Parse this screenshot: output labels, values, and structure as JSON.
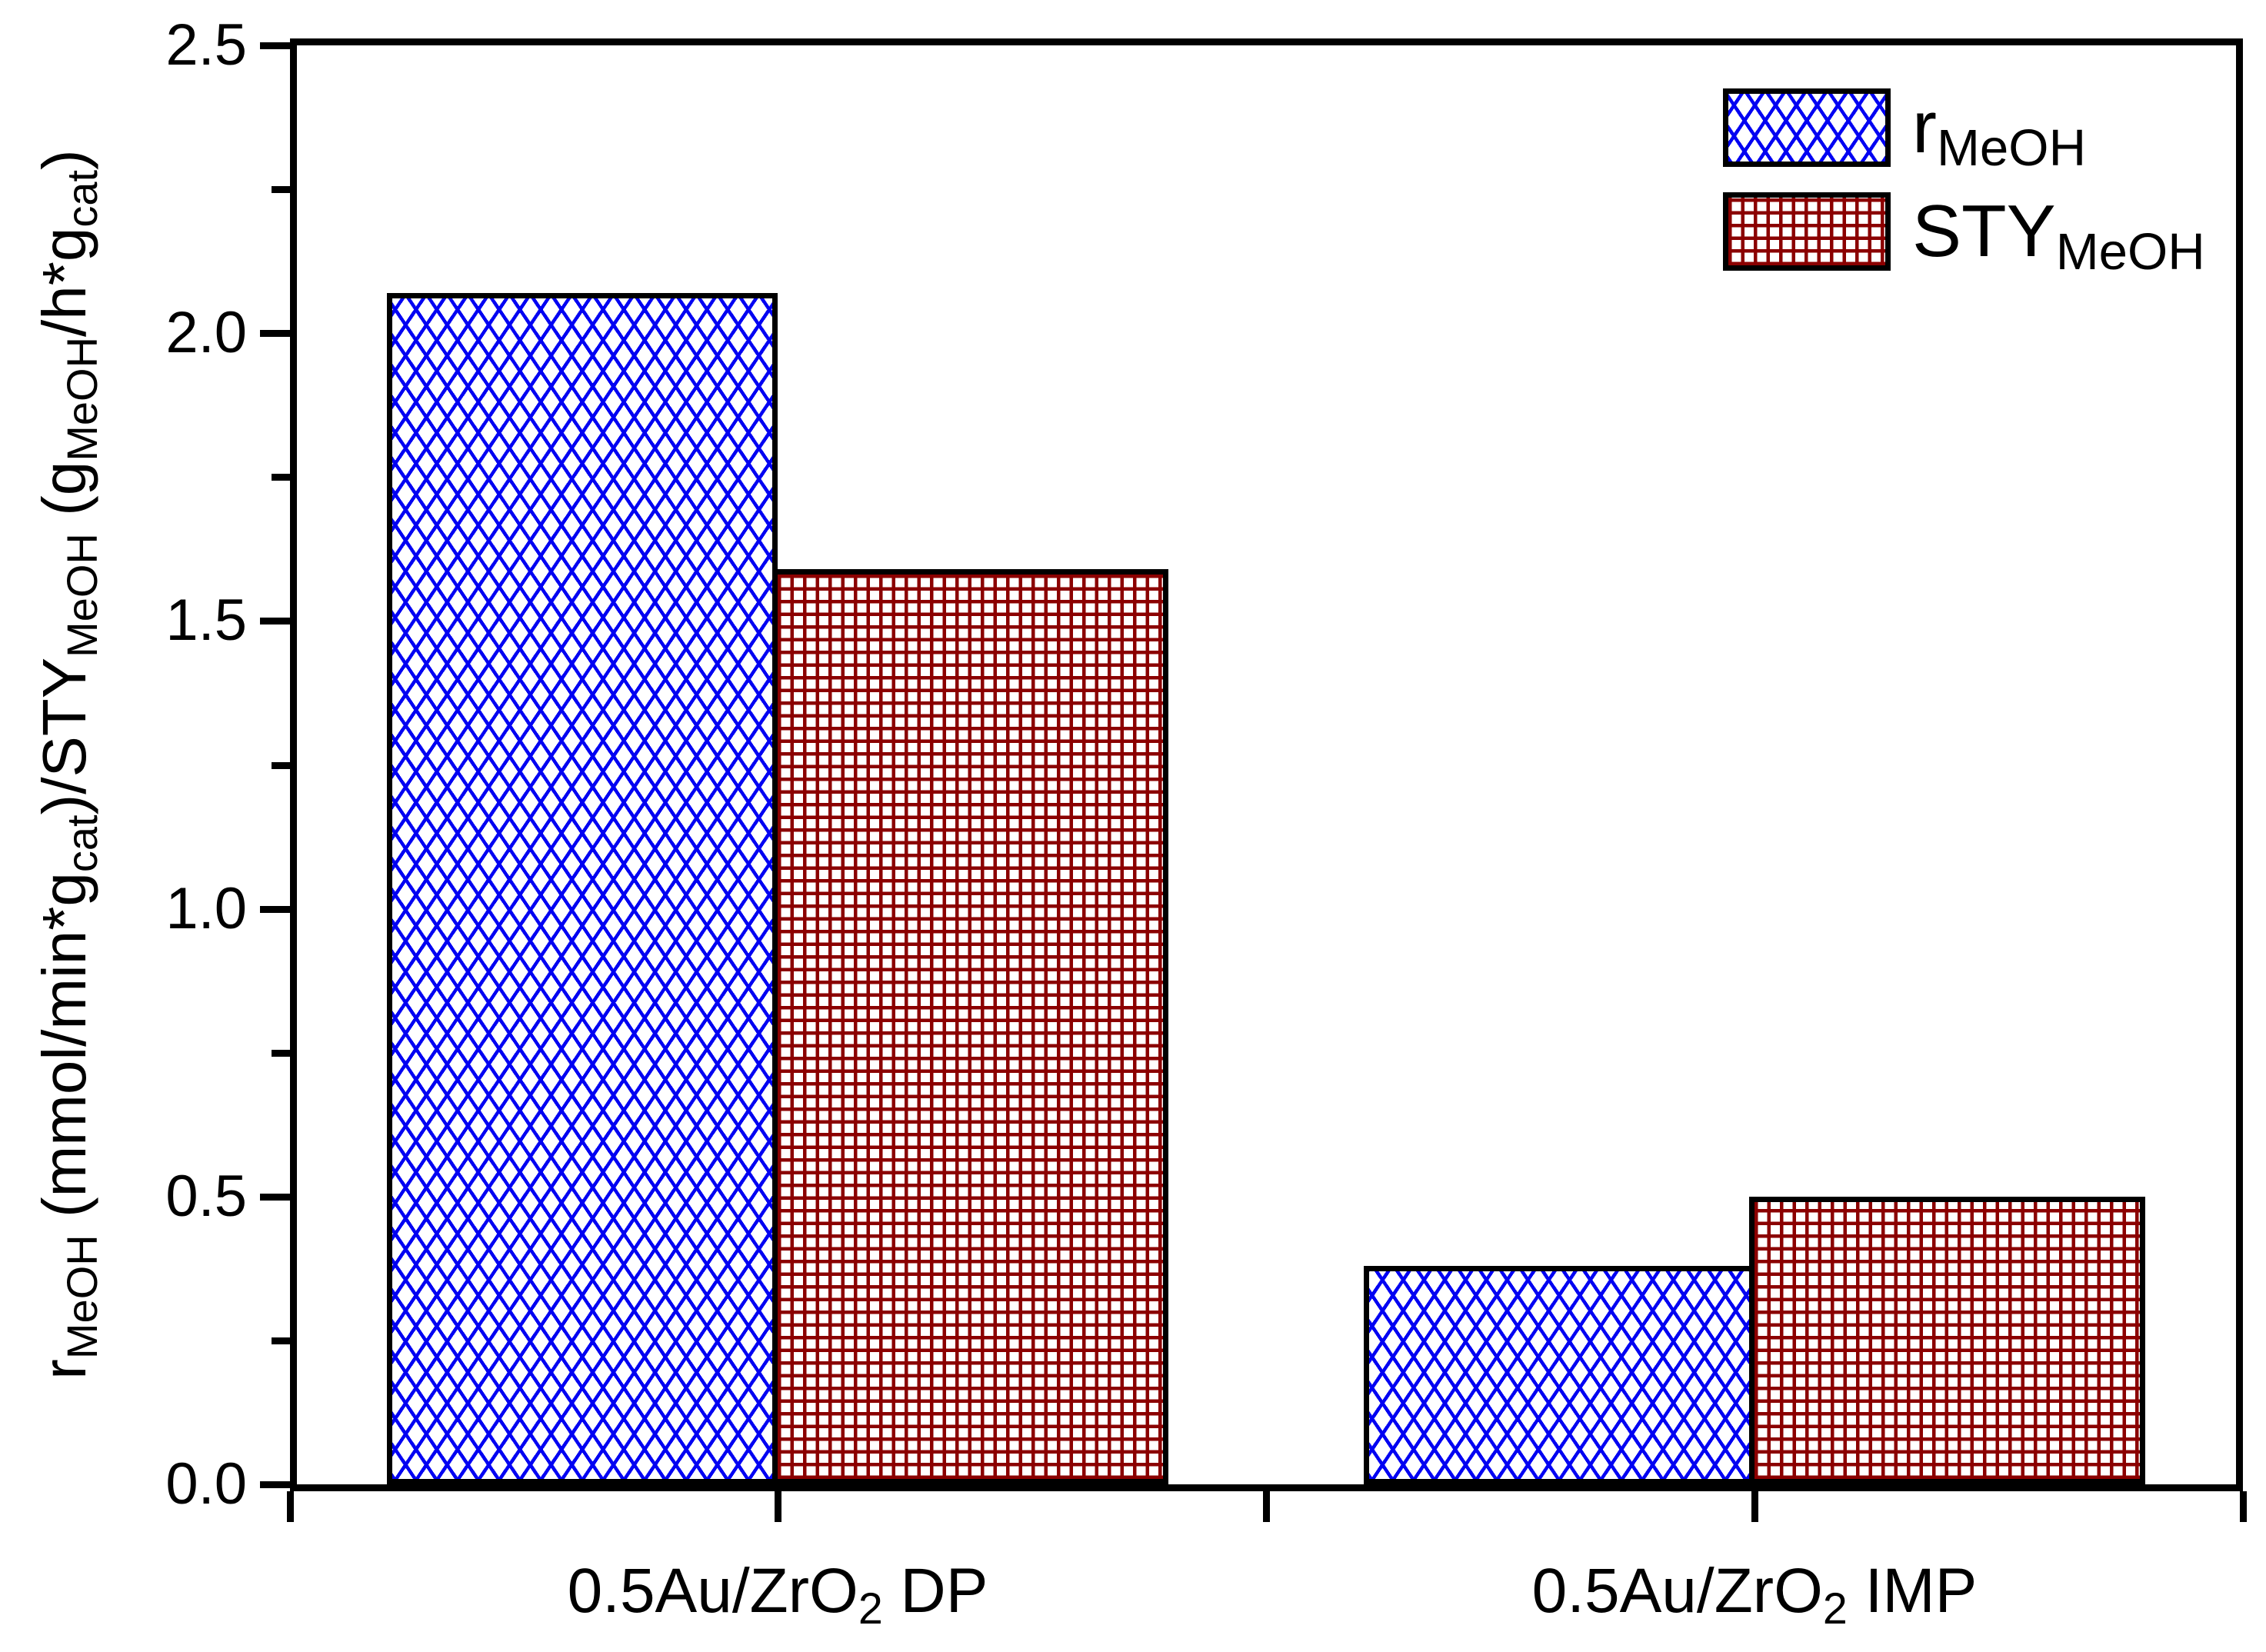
{
  "figure": {
    "colors": {
      "r_meoh_pattern": "#0202f2",
      "sty_meoh_pattern": "#8b0000",
      "axis": "#000000",
      "background": "#ffffff"
    },
    "y_axis": {
      "label_text": "r_MeOH (mmol/min*g_cat)/STY_MeOH (g_MeOH/h*g_cat)",
      "label_parts": [
        {
          "t": "r"
        },
        {
          "s": "MeOH"
        },
        {
          "t": " (mmol/min*g"
        },
        {
          "s": "cat"
        },
        {
          "t": ")/STY"
        },
        {
          "s": "MeOH"
        },
        {
          "t": " (g"
        },
        {
          "s": "MeOH"
        },
        {
          "t": "/h*g"
        },
        {
          "s": "cat"
        },
        {
          "t": ")"
        }
      ],
      "tick_labels": [
        "2.5",
        "2.0",
        "1.5",
        "1.0",
        "0.5",
        "0.0"
      ],
      "minor_tick_values": [
        2.25,
        1.75,
        1.25,
        0.75,
        0.25
      ]
    },
    "x_axis": {
      "categories": [
        {
          "label_text": "0.5Au/ZrO2 DP",
          "label_parts": [
            {
              "t": "0.5Au/ZrO"
            },
            {
              "s": "2"
            },
            {
              "t": " DP"
            }
          ]
        },
        {
          "label_text": "0.5Au/ZrO2 IMP",
          "label_parts": [
            {
              "t": "0.5Au/ZrO"
            },
            {
              "s": "2"
            },
            {
              "t": " IMP"
            }
          ]
        }
      ]
    },
    "legend": [
      {
        "label_text": "r_MeOH",
        "label_parts": [
          {
            "t": "r"
          },
          {
            "s": "MeOH"
          }
        ],
        "pattern": "blue-diagonal-crosshatch"
      },
      {
        "label_text": "STY_MeOH",
        "label_parts": [
          {
            "t": "STY"
          },
          {
            "s": "MeOH"
          }
        ],
        "pattern": "darkred-grid"
      }
    ]
  },
  "chart_data": {
    "type": "bar",
    "categories": [
      "0.5Au/ZrO2 DP",
      "0.5Au/ZrO2 IMP"
    ],
    "series": [
      {
        "name": "r_MeOH",
        "values": [
          2.07,
          0.38
        ],
        "pattern": "blue diagonal crosshatch, black border"
      },
      {
        "name": "STY_MeOH",
        "values": [
          1.59,
          0.5
        ],
        "pattern": "dark red grid, black border"
      }
    ],
    "title": "",
    "xlabel": "",
    "ylabel": "r_MeOH (mmol/min*g_cat)/STY_MeOH (g_MeOH/h*g_cat)",
    "ylim": [
      0,
      2.5
    ],
    "y_major_step": 0.5,
    "y_minor_step": 0.25,
    "grid": false,
    "legend_position": "top-right inside plot"
  }
}
